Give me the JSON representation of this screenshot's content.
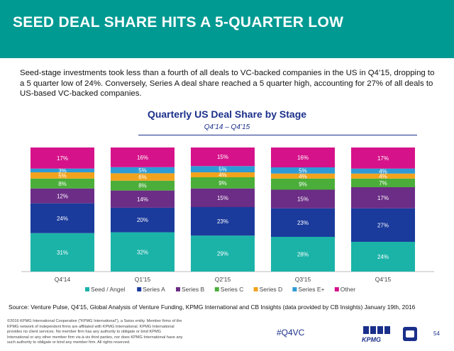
{
  "header": {
    "title": "SEED DEAL SHARE HITS A 5-QUARTER LOW"
  },
  "intro": {
    "text": "Seed-stage investments took less than a fourth of all deals to VC-backed companies in the US in Q4’15, dropping to a 5 quarter low of 24%. Conversely, Series A deal share reached a 5 quarter high, accounting for 27% of all deals to US-based VC-backed companies."
  },
  "chart_data": {
    "type": "bar",
    "stacked": true,
    "title": "Quarterly US Deal Share by Stage",
    "subtitle": "Q4’14 – Q4’15",
    "categories": [
      "Q4'14",
      "Q1'15",
      "Q2'15",
      "Q3'15",
      "Q4'15"
    ],
    "ylim": [
      0,
      100
    ],
    "legend_position": "bottom",
    "series": [
      {
        "name": "Seed / Angel",
        "color": "#1bb3a8",
        "values": [
          31,
          32,
          29,
          28,
          24
        ],
        "labels": [
          "31%",
          "32%",
          "29%",
          "28%",
          "24%"
        ]
      },
      {
        "name": "Series A",
        "color": "#1a3a9c",
        "values": [
          24,
          20,
          23,
          23,
          27
        ],
        "labels": [
          "24%",
          "20%",
          "23%",
          "23%",
          "27%"
        ]
      },
      {
        "name": "Series B",
        "color": "#6b2d86",
        "values": [
          12,
          14,
          15,
          15,
          17
        ],
        "labels": [
          "12%",
          "14%",
          "15%",
          "15%",
          "17%"
        ]
      },
      {
        "name": "Series C",
        "color": "#4bae3a",
        "values": [
          8,
          8,
          9,
          9,
          7
        ],
        "labels": [
          "8%",
          "8%",
          "9%",
          "9%",
          "7%"
        ]
      },
      {
        "name": "Series D",
        "color": "#f2a31d",
        "values": [
          5,
          6,
          4,
          4,
          4
        ],
        "labels": [
          "5%",
          "6%",
          "4%",
          "4%",
          "4%"
        ]
      },
      {
        "name": "Series E+",
        "color": "#2e9bd6",
        "values": [
          3,
          5,
          5,
          5,
          4
        ],
        "labels": [
          "3%",
          "5%",
          "5%",
          "5%",
          "4%"
        ]
      },
      {
        "name": "Other",
        "color": "#d6128a",
        "values": [
          17,
          16,
          15,
          16,
          17
        ],
        "labels": [
          "17%",
          "16%",
          "15%",
          "16%",
          "17%"
        ]
      }
    ]
  },
  "footer": {
    "source": "Source: Venture Pulse, Q4'15, Global Analysis of Venture Funding, KPMG International and CB Insights (data provided by CB Insights) January 19th, 2016",
    "legal": "©2016 KPMG International Cooperative (\"KPMG International\"), a Swiss entity. Member firms of the KPMG network of independent firms are affiliated with KPMG International. KPMG International provides no client services. No member firm has any authority to obligate or bind KPMG International or any other member firm vis-à-vis third parties, nor does KPMG International have any such authority to obligate or bind any member firm. All rights reserved.",
    "hashtag": "#Q4VC",
    "brand": "KPMG",
    "page": "54"
  }
}
